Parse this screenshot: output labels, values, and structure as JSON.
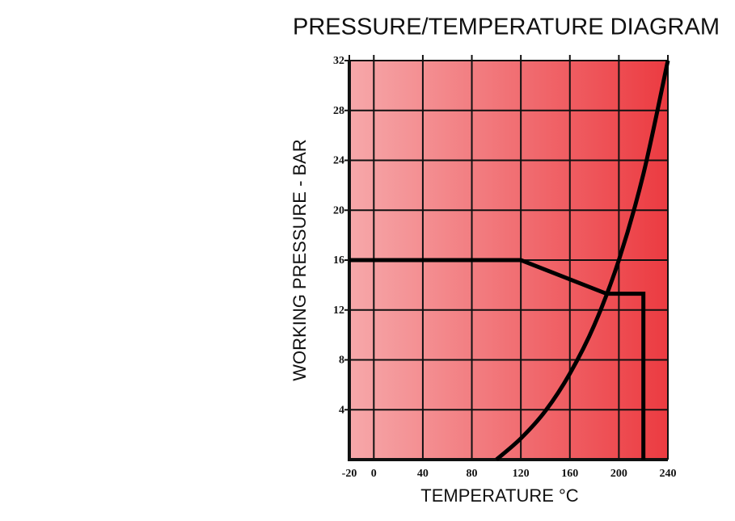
{
  "chart_data": {
    "type": "line",
    "title": "PRESSURE/TEMPERATURE DIAGRAM",
    "x_label": "TEMPERATURE °C",
    "y_label": "WORKING PRESSURE - BAR",
    "xlim": [
      -20,
      240
    ],
    "xticks": [
      -20,
      0,
      40,
      80,
      120,
      160,
      200,
      240
    ],
    "ylim": [
      0,
      32
    ],
    "yticks": [
      4,
      8,
      12,
      16,
      20,
      24,
      28,
      32
    ],
    "grid": true,
    "series": [
      {
        "color": "#000000",
        "x": [
          -20,
          120,
          190,
          220,
          220
        ],
        "values": [
          16,
          16,
          13.3,
          13.3,
          0
        ]
      },
      {
        "color": "#000000",
        "smooth": true,
        "x": [
          100,
          120,
          140,
          160,
          180,
          200,
          220,
          240
        ],
        "values": [
          0,
          1.7,
          3.9,
          6.9,
          10.8,
          16,
          22.9,
          32
        ]
      }
    ]
  }
}
